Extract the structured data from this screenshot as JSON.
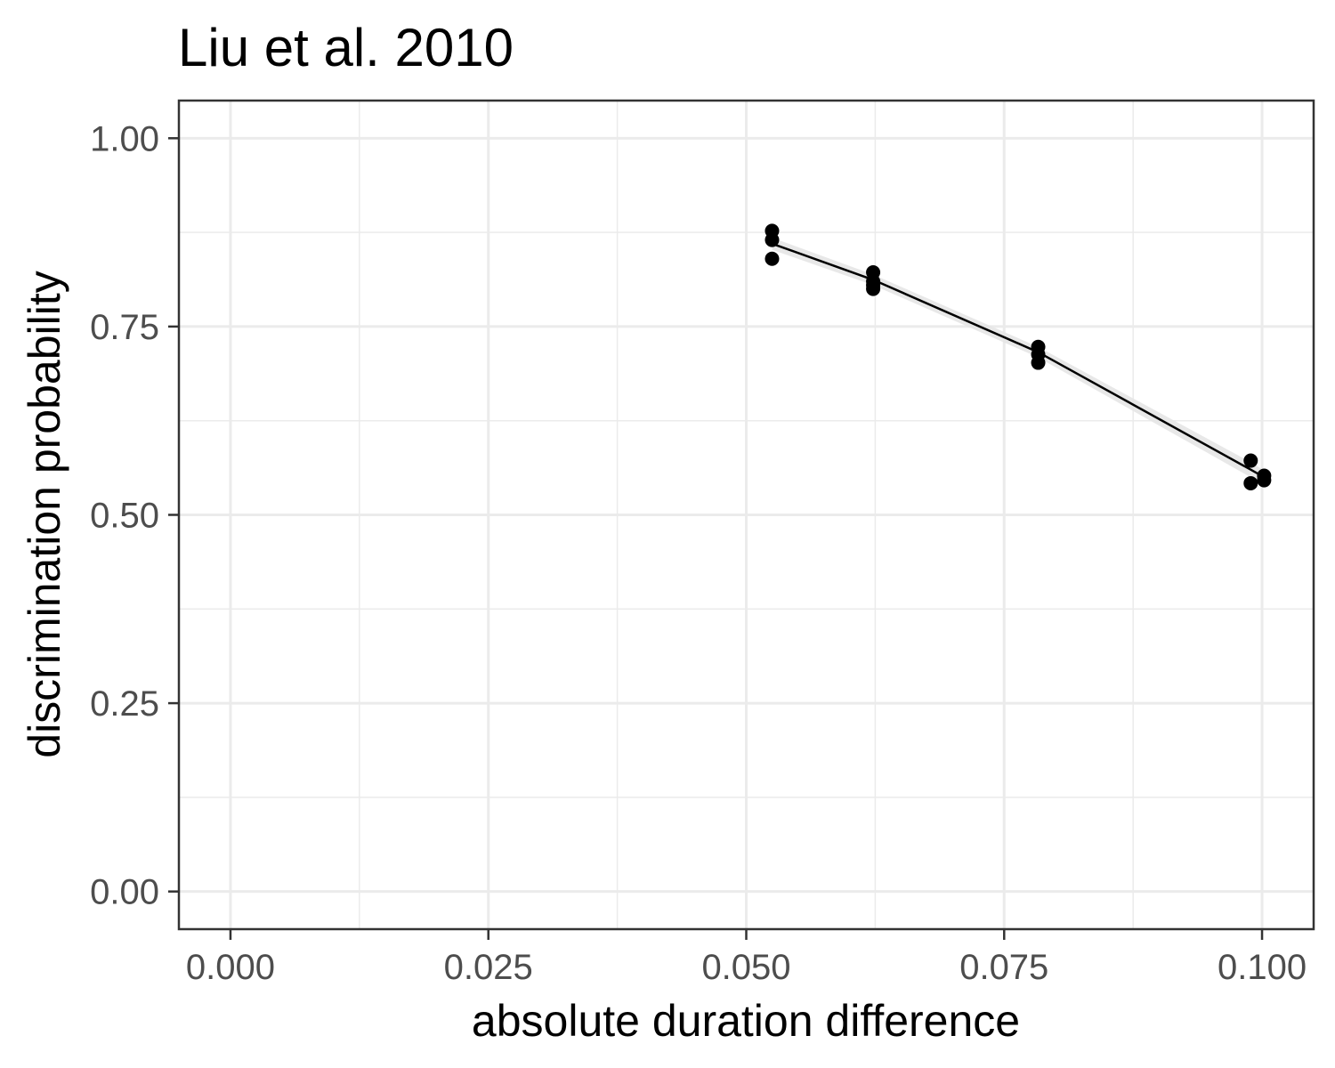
{
  "chart_data": {
    "type": "scatter",
    "title": "Liu et al. 2010",
    "xlabel": "absolute duration difference",
    "ylabel": "discrimination probability",
    "xlim": [
      -0.005,
      0.105
    ],
    "ylim": [
      -0.05,
      1.05
    ],
    "x_ticks": [
      0.0,
      0.025,
      0.05,
      0.075,
      0.1
    ],
    "x_tick_labels": [
      "0.000",
      "0.025",
      "0.050",
      "0.075",
      "0.100"
    ],
    "y_ticks": [
      0.0,
      0.25,
      0.5,
      0.75,
      1.0
    ],
    "y_tick_labels": [
      "0.00",
      "0.25",
      "0.50",
      "0.75",
      "1.00"
    ],
    "x_minor": [
      0.0125,
      0.0375,
      0.0625,
      0.0875
    ],
    "y_minor": [
      0.125,
      0.375,
      0.625,
      0.875
    ],
    "grid": true,
    "points": [
      {
        "x": 0.0525,
        "y": 0.877
      },
      {
        "x": 0.0525,
        "y": 0.865
      },
      {
        "x": 0.0525,
        "y": 0.84
      },
      {
        "x": 0.0623,
        "y": 0.822
      },
      {
        "x": 0.0623,
        "y": 0.81
      },
      {
        "x": 0.0623,
        "y": 0.8
      },
      {
        "x": 0.0623,
        "y": 0.805
      },
      {
        "x": 0.0783,
        "y": 0.723
      },
      {
        "x": 0.0783,
        "y": 0.713
      },
      {
        "x": 0.0783,
        "y": 0.702
      },
      {
        "x": 0.0989,
        "y": 0.572
      },
      {
        "x": 0.0989,
        "y": 0.542
      },
      {
        "x": 0.1002,
        "y": 0.552
      },
      {
        "x": 0.1002,
        "y": 0.546
      }
    ],
    "fit_line": {
      "x": [
        0.0525,
        0.0623,
        0.0783,
        0.0989,
        0.1002
      ],
      "y": [
        0.86,
        0.812,
        0.716,
        0.56,
        0.55
      ]
    },
    "ribbon": {
      "x": [
        0.0525,
        0.0623,
        0.0783,
        0.0989,
        0.1002
      ],
      "lower": [
        0.852,
        0.805,
        0.709,
        0.55,
        0.541
      ],
      "upper": [
        0.868,
        0.819,
        0.723,
        0.57,
        0.559
      ]
    },
    "colors": {
      "points": "#000000",
      "line": "#000000",
      "ribbon": "#e6e6e6",
      "grid": "#ebebeb",
      "border": "#333333",
      "tick_text": "#4d4d4d"
    }
  }
}
